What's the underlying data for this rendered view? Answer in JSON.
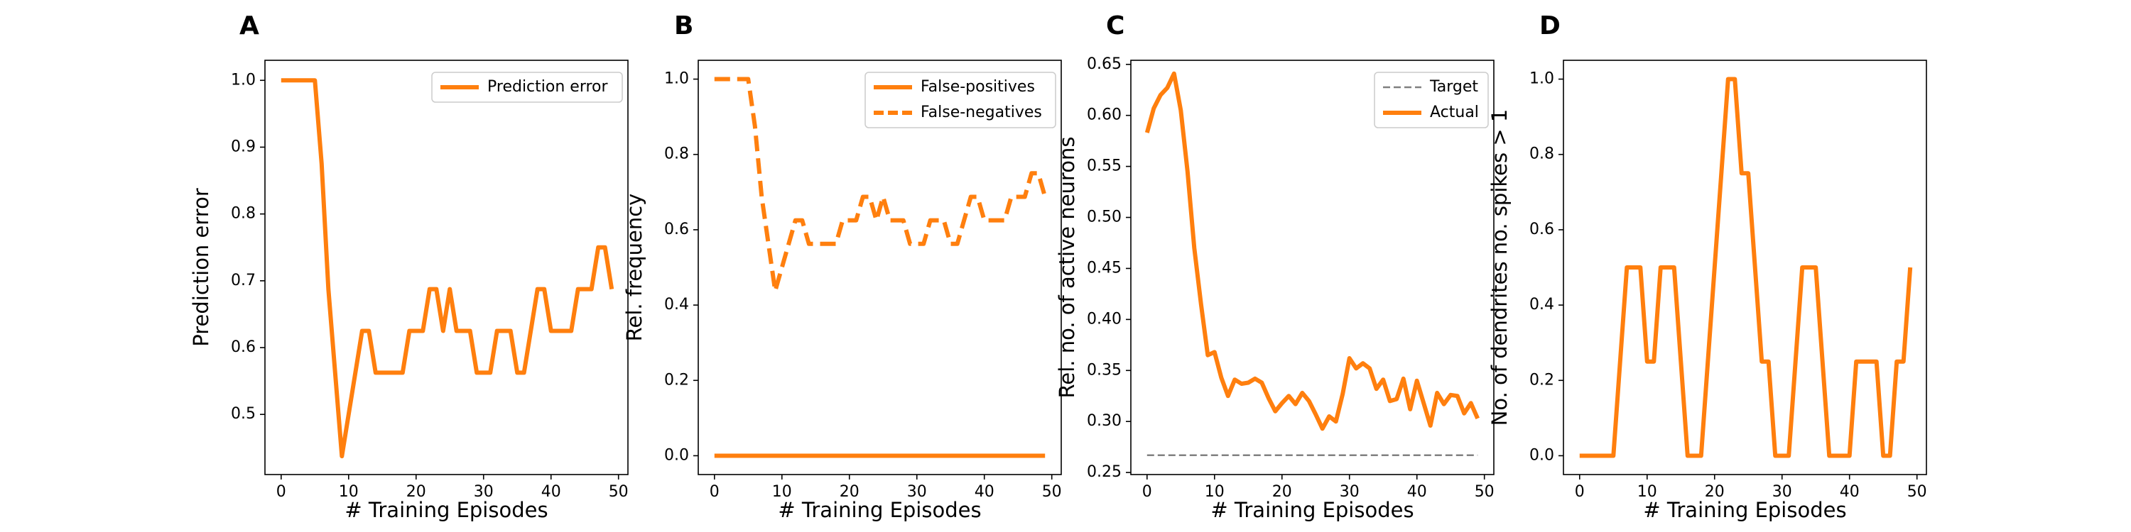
{
  "chart_data": [
    {
      "panel": "A",
      "type": "line",
      "xlabel": "# Training Episodes",
      "ylabel": "Prediction error",
      "xlim": [
        -2.4,
        51.4
      ],
      "ylim": [
        0.41,
        1.03
      ],
      "xticks": [
        0,
        10,
        20,
        30,
        40,
        50
      ],
      "yticks": [
        0.5,
        0.6,
        0.7,
        0.8,
        0.9,
        1.0
      ],
      "ytick_labels": [
        "0.5",
        "0.6",
        "0.7",
        "0.8",
        "0.9",
        "1.0"
      ],
      "legend": "top-right",
      "grid": false,
      "x": [
        0,
        1,
        2,
        3,
        4,
        5,
        6,
        7,
        8,
        9,
        10,
        11,
        12,
        13,
        14,
        15,
        16,
        17,
        18,
        19,
        20,
        21,
        22,
        23,
        24,
        25,
        26,
        27,
        28,
        29,
        30,
        31,
        32,
        33,
        34,
        35,
        36,
        37,
        38,
        39,
        40,
        41,
        42,
        43,
        44,
        45,
        46,
        47,
        48,
        49
      ],
      "series": [
        {
          "name": "Prediction error",
          "style": "solid",
          "color": "#ff7f0e",
          "values": [
            1.0,
            1.0,
            1.0,
            1.0,
            1.0,
            1.0,
            0.875,
            0.6875,
            0.5625,
            0.4375,
            0.5,
            0.5625,
            0.625,
            0.625,
            0.5625,
            0.5625,
            0.5625,
            0.5625,
            0.5625,
            0.625,
            0.625,
            0.625,
            0.6875,
            0.6875,
            0.625,
            0.6875,
            0.625,
            0.625,
            0.625,
            0.5625,
            0.5625,
            0.5625,
            0.625,
            0.625,
            0.625,
            0.5625,
            0.5625,
            0.625,
            0.6875,
            0.6875,
            0.625,
            0.625,
            0.625,
            0.625,
            0.6875,
            0.6875,
            0.6875,
            0.75,
            0.75,
            0.6875
          ]
        }
      ]
    },
    {
      "panel": "B",
      "type": "line",
      "xlabel": "# Training Episodes",
      "ylabel": "Rel. frequency",
      "xlim": [
        -2.4,
        51.4
      ],
      "ylim": [
        -0.05,
        1.05
      ],
      "xticks": [
        0,
        10,
        20,
        30,
        40,
        50
      ],
      "yticks": [
        0.0,
        0.2,
        0.4,
        0.6,
        0.8,
        1.0
      ],
      "ytick_labels": [
        "0.0",
        "0.2",
        "0.4",
        "0.6",
        "0.8",
        "1.0"
      ],
      "legend": "top-right",
      "grid": false,
      "x": [
        0,
        1,
        2,
        3,
        4,
        5,
        6,
        7,
        8,
        9,
        10,
        11,
        12,
        13,
        14,
        15,
        16,
        17,
        18,
        19,
        20,
        21,
        22,
        23,
        24,
        25,
        26,
        27,
        28,
        29,
        30,
        31,
        32,
        33,
        34,
        35,
        36,
        37,
        38,
        39,
        40,
        41,
        42,
        43,
        44,
        45,
        46,
        47,
        48,
        49
      ],
      "series": [
        {
          "name": "False-positives",
          "style": "solid",
          "color": "#ff7f0e",
          "values": [
            0,
            0,
            0,
            0,
            0,
            0,
            0,
            0,
            0,
            0,
            0,
            0,
            0,
            0,
            0,
            0,
            0,
            0,
            0,
            0,
            0,
            0,
            0,
            0,
            0,
            0,
            0,
            0,
            0,
            0,
            0,
            0,
            0,
            0,
            0,
            0,
            0,
            0,
            0,
            0,
            0,
            0,
            0,
            0,
            0,
            0,
            0,
            0,
            0,
            0
          ]
        },
        {
          "name": "False-negatives",
          "style": "dashed",
          "color": "#ff7f0e",
          "values": [
            1.0,
            1.0,
            1.0,
            1.0,
            1.0,
            1.0,
            0.875,
            0.6875,
            0.5625,
            0.4375,
            0.5,
            0.5625,
            0.625,
            0.625,
            0.5625,
            0.5625,
            0.5625,
            0.5625,
            0.5625,
            0.625,
            0.625,
            0.625,
            0.6875,
            0.6875,
            0.625,
            0.6875,
            0.625,
            0.625,
            0.625,
            0.5625,
            0.5625,
            0.5625,
            0.625,
            0.625,
            0.625,
            0.5625,
            0.5625,
            0.625,
            0.6875,
            0.6875,
            0.625,
            0.625,
            0.625,
            0.625,
            0.6875,
            0.6875,
            0.6875,
            0.75,
            0.75,
            0.6875
          ]
        }
      ]
    },
    {
      "panel": "C",
      "type": "line",
      "xlabel": "# Training Episodes",
      "ylabel": "Rel. no. of active neurons",
      "xlim": [
        -2.4,
        51.4
      ],
      "ylim": [
        0.248,
        0.654
      ],
      "xticks": [
        0,
        10,
        20,
        30,
        40,
        50
      ],
      "yticks": [
        0.25,
        0.3,
        0.35,
        0.4,
        0.45,
        0.5,
        0.55,
        0.6,
        0.65
      ],
      "ytick_labels": [
        "0.25",
        "0.30",
        "0.35",
        "0.40",
        "0.45",
        "0.50",
        "0.55",
        "0.60",
        "0.65"
      ],
      "legend": "top-right",
      "grid": false,
      "x": [
        0,
        1,
        2,
        3,
        4,
        5,
        6,
        7,
        8,
        9,
        10,
        11,
        12,
        13,
        14,
        15,
        16,
        17,
        18,
        19,
        20,
        21,
        22,
        23,
        24,
        25,
        26,
        27,
        28,
        29,
        30,
        31,
        32,
        33,
        34,
        35,
        36,
        37,
        38,
        39,
        40,
        41,
        42,
        43,
        44,
        45,
        46,
        47,
        48,
        49
      ],
      "series": [
        {
          "name": "Target",
          "style": "dashed",
          "color": "#808080",
          "values": [
            0.267,
            0.267,
            0.267,
            0.267,
            0.267,
            0.267,
            0.267,
            0.267,
            0.267,
            0.267,
            0.267,
            0.267,
            0.267,
            0.267,
            0.267,
            0.267,
            0.267,
            0.267,
            0.267,
            0.267,
            0.267,
            0.267,
            0.267,
            0.267,
            0.267,
            0.267,
            0.267,
            0.267,
            0.267,
            0.267,
            0.267,
            0.267,
            0.267,
            0.267,
            0.267,
            0.267,
            0.267,
            0.267,
            0.267,
            0.267,
            0.267,
            0.267,
            0.267,
            0.267,
            0.267,
            0.267,
            0.267,
            0.267,
            0.267,
            0.267
          ]
        },
        {
          "name": "Actual",
          "style": "solid",
          "color": "#ff7f0e",
          "values": [
            0.583,
            0.607,
            0.62,
            0.627,
            0.641,
            0.605,
            0.545,
            0.47,
            0.415,
            0.365,
            0.368,
            0.343,
            0.325,
            0.341,
            0.337,
            0.338,
            0.342,
            0.338,
            0.323,
            0.31,
            0.318,
            0.325,
            0.317,
            0.328,
            0.32,
            0.307,
            0.293,
            0.305,
            0.3,
            0.327,
            0.362,
            0.352,
            0.357,
            0.352,
            0.332,
            0.341,
            0.32,
            0.322,
            0.342,
            0.312,
            0.34,
            0.318,
            0.296,
            0.328,
            0.317,
            0.326,
            0.325,
            0.308,
            0.318,
            0.303
          ]
        }
      ]
    },
    {
      "panel": "D",
      "type": "line",
      "xlabel": "# Training Episodes",
      "ylabel": "No. of dendrites no. spikes > 1",
      "xlim": [
        -2.4,
        51.4
      ],
      "ylim": [
        -0.05,
        1.05
      ],
      "xticks": [
        0,
        10,
        20,
        30,
        40,
        50
      ],
      "yticks": [
        0.0,
        0.2,
        0.4,
        0.6,
        0.8,
        1.0
      ],
      "ytick_labels": [
        "0.0",
        "0.2",
        "0.4",
        "0.6",
        "0.8",
        "1.0"
      ],
      "legend": "",
      "grid": false,
      "x": [
        0,
        1,
        2,
        3,
        4,
        5,
        6,
        7,
        8,
        9,
        10,
        11,
        12,
        13,
        14,
        15,
        16,
        17,
        18,
        19,
        20,
        21,
        22,
        23,
        24,
        25,
        26,
        27,
        28,
        29,
        30,
        31,
        32,
        33,
        34,
        35,
        36,
        37,
        38,
        39,
        40,
        41,
        42,
        43,
        44,
        45,
        46,
        47,
        48,
        49
      ],
      "series": [
        {
          "name": "",
          "style": "solid",
          "color": "#ff7f0e",
          "values": [
            0,
            0,
            0,
            0,
            0,
            0,
            0.25,
            0.5,
            0.5,
            0.5,
            0.25,
            0.25,
            0.5,
            0.5,
            0.5,
            0.25,
            0,
            0,
            0,
            0.25,
            0.5,
            0.75,
            1.0,
            1.0,
            0.75,
            0.75,
            0.5,
            0.25,
            0.25,
            0,
            0,
            0,
            0.25,
            0.5,
            0.5,
            0.5,
            0.25,
            0,
            0,
            0,
            0,
            0.25,
            0.25,
            0.25,
            0.25,
            0,
            0,
            0.25,
            0.25,
            0.5
          ]
        }
      ]
    }
  ]
}
